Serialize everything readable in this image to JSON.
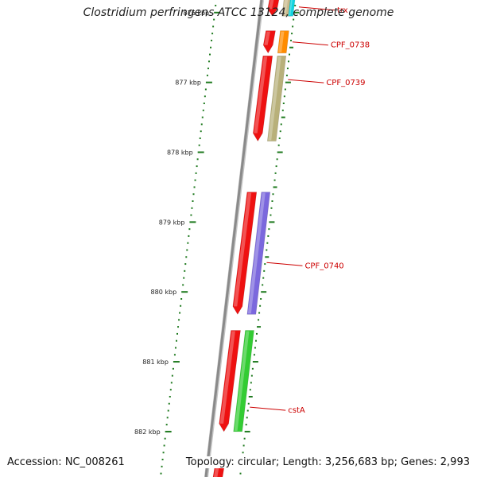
{
  "title": "Clostridium perfringens ATCC 13124, complete genome",
  "accession_text": "Accession: NC_008261",
  "summary_text": "Topology: circular; Length: 3,256,683 bp; Genes: 2,993",
  "scale_unit": "kbp",
  "tick_labels": [
    "876 kbp",
    "877 kbp",
    "878 kbp",
    "879 kbp",
    "880 kbp",
    "881 kbp",
    "882 kbp"
  ],
  "view_range_kbp": [
    875.82,
    882.65
  ],
  "genes": [
    {
      "name": "trx",
      "start_kbp": 875.8,
      "end_kbp": 876.05,
      "strand": "-",
      "track": 1,
      "color": "#ee1111",
      "labeled": false
    },
    {
      "name": "trx",
      "start_kbp": 875.8,
      "end_kbp": 876.05,
      "strand": "+",
      "track": 2,
      "color": "#c8b98a",
      "labeled": false
    },
    {
      "name": "trx",
      "start_kbp": 875.8,
      "end_kbp": 876.05,
      "strand": "+",
      "track": 3,
      "color": "#11d4e0",
      "labeled": true
    },
    {
      "name": "CPF_0738",
      "start_kbp": 876.26,
      "end_kbp": 876.58,
      "strand": "-",
      "track": 1,
      "color": "#ee1111",
      "labeled": false
    },
    {
      "name": "CPF_0738",
      "start_kbp": 876.26,
      "end_kbp": 876.58,
      "strand": "+",
      "track": 2,
      "color": "#ff8c00",
      "labeled": true
    },
    {
      "name": "CPF_0739",
      "start_kbp": 876.62,
      "end_kbp": 877.84,
      "strand": "-",
      "track": 1,
      "color": "#ee1111",
      "labeled": false
    },
    {
      "name": "CPF_0739",
      "start_kbp": 876.62,
      "end_kbp": 877.84,
      "strand": "+",
      "track": 2,
      "color": "#b8b07a",
      "labeled": true
    },
    {
      "name": "CPF_0740",
      "start_kbp": 878.57,
      "end_kbp": 880.32,
      "strand": "-",
      "track": 1,
      "color": "#ee1111",
      "labeled": false
    },
    {
      "name": "CPF_0740",
      "start_kbp": 878.57,
      "end_kbp": 880.32,
      "strand": "+",
      "track": 2,
      "color": "#7b68dd",
      "labeled": true
    },
    {
      "name": "cstA",
      "start_kbp": 880.55,
      "end_kbp": 882.0,
      "strand": "-",
      "track": 1,
      "color": "#ee1111",
      "labeled": false
    },
    {
      "name": "cstA",
      "start_kbp": 880.55,
      "end_kbp": 882.0,
      "strand": "+",
      "track": 2,
      "color": "#33cc33",
      "labeled": true
    },
    {
      "name": "",
      "start_kbp": 882.4,
      "end_kbp": 882.8,
      "strand": "-",
      "track": 1,
      "color": "#ee1111",
      "labeled": false
    }
  ],
  "gene_labels": [
    {
      "text": "trx",
      "at_kbp": 875.92,
      "anchor_track": 3
    },
    {
      "text": "CPF_0738",
      "at_kbp": 876.42,
      "anchor_track": 2
    },
    {
      "text": "CPF_0739",
      "at_kbp": 876.96,
      "anchor_track": 2
    },
    {
      "text": "CPF_0740",
      "at_kbp": 879.58,
      "anchor_track": 2
    },
    {
      "text": "cstA",
      "at_kbp": 881.65,
      "anchor_track": 2
    }
  ],
  "colors": {
    "backbone": "#8a8a8a",
    "ticks": "#1f7a1f",
    "label_leader": "#cc0000"
  }
}
